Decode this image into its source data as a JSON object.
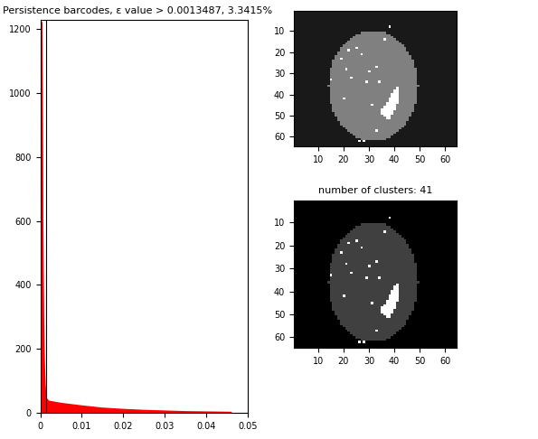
{
  "chart_data": [
    {
      "type": "line",
      "title": "Persistence barcodes, ε value > 0.0013487, 3.3415%",
      "threshold": 0.0013487,
      "x": [
        0.046,
        0.035,
        0.03,
        0.025,
        0.02,
        0.015,
        0.01,
        0.005,
        0.002,
        0.0013,
        0.0011,
        0.0009,
        0.0007,
        0.0005,
        0.0004,
        0.0003
      ],
      "values": [
        0,
        2,
        4,
        6,
        9,
        13,
        20,
        28,
        35,
        45,
        80,
        150,
        300,
        600,
        1000,
        1220
      ],
      "color": "#ff0000",
      "xlim": [
        0,
        0.05
      ],
      "xticks": [
        0,
        0.01,
        0.02,
        0.03,
        0.04,
        0.05
      ],
      "ylim": [
        0,
        1230
      ],
      "yticks": [
        0,
        200,
        400,
        600,
        800,
        1000,
        1200
      ]
    },
    {
      "type": "image",
      "xlim": [
        0.5,
        64.5
      ],
      "ylim": [
        64.5,
        0.5
      ],
      "xticks": [
        10,
        20,
        30,
        40,
        50,
        60
      ],
      "yticks": [
        10,
        20,
        30,
        40,
        50,
        60
      ],
      "clim": [
        0,
        1
      ],
      "background": 0.1,
      "region": {
        "center": [
          31.5,
          36
        ],
        "radii": [
          17.5,
          26
        ],
        "value": 0.5
      },
      "point_value": 1.0,
      "points": [
        [
          38,
          8
        ],
        [
          36,
          14
        ],
        [
          22,
          19
        ],
        [
          25,
          18
        ],
        [
          27,
          21
        ],
        [
          19,
          23
        ],
        [
          21,
          28
        ],
        [
          30,
          29
        ],
        [
          33,
          27
        ],
        [
          15,
          33
        ],
        [
          23,
          32
        ],
        [
          29,
          34
        ],
        [
          34,
          34
        ],
        [
          20,
          42
        ],
        [
          31,
          45
        ],
        [
          33,
          57
        ],
        [
          26,
          62
        ],
        [
          28,
          62
        ]
      ],
      "runs": [
        [
          37,
          41,
          41
        ],
        [
          38,
          40,
          41
        ],
        [
          39,
          40,
          41
        ],
        [
          40,
          39,
          41
        ],
        [
          41,
          39,
          41
        ],
        [
          42,
          38,
          41
        ],
        [
          43,
          38,
          41
        ],
        [
          44,
          37,
          41
        ],
        [
          45,
          37,
          40
        ],
        [
          46,
          36,
          40
        ],
        [
          47,
          35,
          40
        ],
        [
          48,
          35,
          39
        ],
        [
          49,
          35,
          39
        ],
        [
          50,
          36,
          38
        ],
        [
          51,
          37,
          38
        ]
      ]
    },
    {
      "type": "image",
      "title": "number of clusters: 41",
      "xlim": [
        0.5,
        64.5
      ],
      "ylim": [
        64.5,
        0.5
      ],
      "xticks": [
        10,
        20,
        30,
        40,
        50,
        60
      ],
      "yticks": [
        10,
        20,
        30,
        40,
        50,
        60
      ],
      "clim": [
        0,
        1
      ],
      "background": 0.0,
      "region": {
        "center": [
          31.5,
          36
        ],
        "radii": [
          17.5,
          26
        ],
        "value": 0.25
      },
      "point_value": 1.0,
      "points": [
        [
          38,
          8
        ],
        [
          36,
          14
        ],
        [
          22,
          19
        ],
        [
          25,
          18
        ],
        [
          27,
          21
        ],
        [
          19,
          23
        ],
        [
          21,
          28
        ],
        [
          30,
          29
        ],
        [
          33,
          27
        ],
        [
          15,
          33
        ],
        [
          23,
          32
        ],
        [
          29,
          34
        ],
        [
          34,
          34
        ],
        [
          20,
          42
        ],
        [
          31,
          45
        ],
        [
          33,
          57
        ],
        [
          26,
          62
        ],
        [
          28,
          62
        ]
      ],
      "runs": [
        [
          37,
          41,
          41
        ],
        [
          38,
          40,
          41
        ],
        [
          39,
          40,
          41
        ],
        [
          40,
          39,
          41
        ],
        [
          41,
          39,
          41
        ],
        [
          42,
          38,
          41
        ],
        [
          43,
          38,
          41
        ],
        [
          44,
          37,
          41
        ],
        [
          45,
          37,
          40
        ],
        [
          46,
          36,
          40
        ],
        [
          47,
          35,
          40
        ],
        [
          48,
          35,
          39
        ],
        [
          49,
          35,
          39
        ],
        [
          50,
          36,
          38
        ],
        [
          51,
          37,
          38
        ]
      ]
    }
  ]
}
